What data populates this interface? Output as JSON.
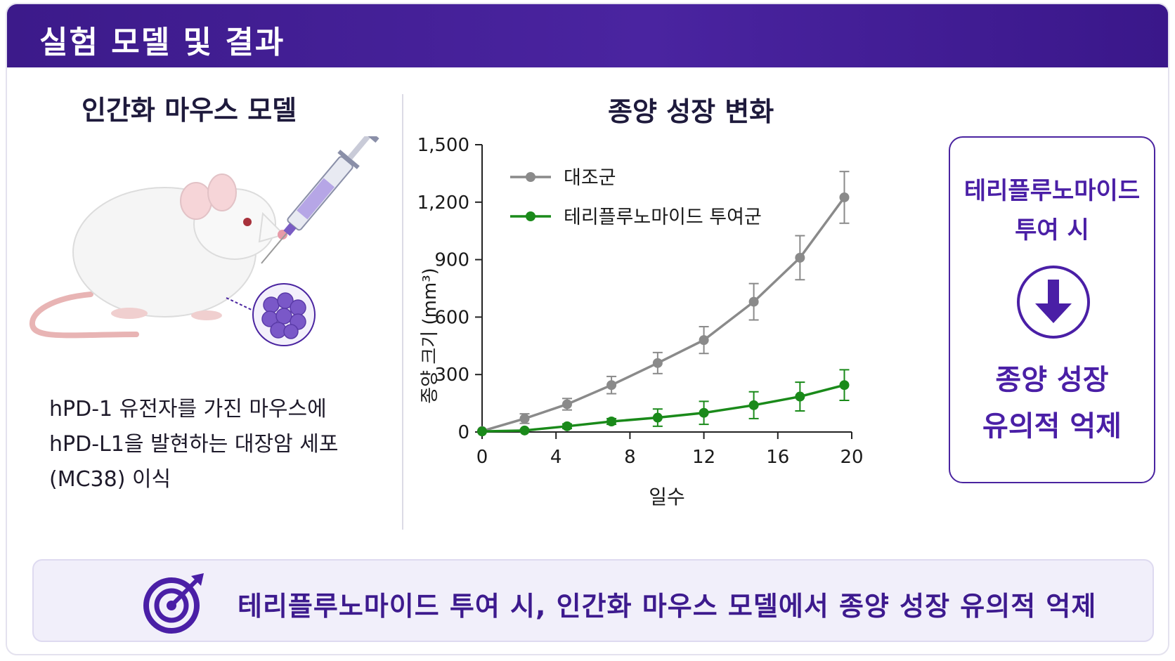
{
  "header": {
    "title": "실험 모델 및 결과"
  },
  "left": {
    "title": "인간화 마우스 모델",
    "description": [
      "hPD-1 유전자를 가진 마우스에",
      "hPD-L1을 발현하는 대장암 세포",
      "(MC38) 이식"
    ]
  },
  "chart": {
    "title": "종양 성장 변화",
    "ylabel": "종양 크기 (mm³)",
    "xlabel": "일수"
  },
  "result_box": {
    "line1": "테리플루노마이드",
    "line2": "투여 시",
    "line3": "종양 성장",
    "line4": "유의적 억제"
  },
  "banner": {
    "text": "테리플루노마이드 투여 시, 인간화 마우스 모델에서 종양 성장 유의적 억제"
  },
  "colors": {
    "accent": "#4a24a0",
    "control": "#8a8a8a",
    "treated": "#1a8a1a"
  },
  "chart_data": {
    "type": "line",
    "xlim": [
      0,
      20
    ],
    "ylim": [
      0,
      1500
    ],
    "xticks": [
      "0",
      "4",
      "8",
      "12",
      "16",
      "20"
    ],
    "yticks": [
      "0",
      "300",
      "600",
      "900",
      "1,200",
      "1,500"
    ],
    "series": [
      {
        "name": "대조군",
        "x": [
          0,
          2.3,
          4.6,
          7,
          9.5,
          12,
          14.7,
          17.2,
          19.6
        ],
        "y": [
          5,
          70,
          145,
          245,
          360,
          480,
          680,
          910,
          1225
        ],
        "err": [
          0,
          25,
          30,
          45,
          55,
          70,
          95,
          115,
          135
        ]
      },
      {
        "name": "테리플루노마이드 투여군",
        "x": [
          0,
          2.3,
          4.6,
          7,
          9.5,
          12,
          14.7,
          17.2,
          19.6
        ],
        "y": [
          3,
          8,
          30,
          55,
          75,
          100,
          140,
          185,
          245
        ],
        "err": [
          0,
          5,
          12,
          15,
          45,
          60,
          70,
          75,
          80
        ]
      }
    ]
  }
}
